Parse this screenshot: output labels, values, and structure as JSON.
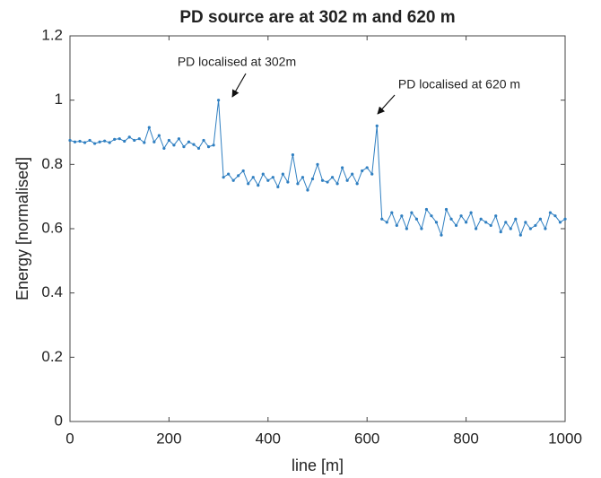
{
  "chart_data": {
    "type": "line",
    "title": "PD source are at 302 m and 620 m",
    "x_label": "line [m]",
    "y_label": "Energy [normalised]",
    "annotations": [
      "PD localised at 302m",
      "PD localised at 620 m"
    ],
    "x": [
      0,
      10,
      20,
      30,
      40,
      50,
      60,
      70,
      80,
      90,
      100,
      110,
      120,
      130,
      140,
      150,
      160,
      170,
      180,
      190,
      200,
      210,
      220,
      230,
      240,
      250,
      260,
      270,
      280,
      290,
      300,
      310,
      320,
      330,
      340,
      350,
      360,
      370,
      380,
      390,
      400,
      410,
      420,
      430,
      440,
      450,
      460,
      470,
      480,
      490,
      500,
      510,
      520,
      530,
      540,
      550,
      560,
      570,
      580,
      590,
      600,
      610,
      620,
      630,
      640,
      650,
      660,
      670,
      680,
      690,
      700,
      710,
      720,
      730,
      740,
      750,
      760,
      770,
      780,
      790,
      800,
      810,
      820,
      830,
      840,
      850,
      860,
      870,
      880,
      890,
      900,
      910,
      920,
      930,
      940,
      950,
      960,
      970,
      980,
      990,
      1000
    ],
    "series": [
      {
        "color": "#2f7fc1",
        "values": [
          0.875,
          0.87,
          0.872,
          0.868,
          0.875,
          0.865,
          0.87,
          0.873,
          0.868,
          0.878,
          0.88,
          0.872,
          0.885,
          0.875,
          0.88,
          0.868,
          0.915,
          0.87,
          0.89,
          0.85,
          0.875,
          0.86,
          0.88,
          0.855,
          0.87,
          0.862,
          0.85,
          0.875,
          0.855,
          0.86,
          1.0,
          0.76,
          0.77,
          0.75,
          0.765,
          0.78,
          0.74,
          0.76,
          0.735,
          0.77,
          0.75,
          0.76,
          0.73,
          0.77,
          0.745,
          0.83,
          0.74,
          0.76,
          0.72,
          0.755,
          0.8,
          0.75,
          0.745,
          0.76,
          0.74,
          0.79,
          0.75,
          0.77,
          0.74,
          0.78,
          0.79,
          0.77,
          0.92,
          0.63,
          0.62,
          0.65,
          0.61,
          0.64,
          0.6,
          0.65,
          0.63,
          0.6,
          0.66,
          0.64,
          0.62,
          0.58,
          0.66,
          0.63,
          0.61,
          0.64,
          0.62,
          0.65,
          0.6,
          0.63,
          0.62,
          0.61,
          0.64,
          0.59,
          0.62,
          0.6,
          0.63,
          0.58,
          0.62,
          0.6,
          0.61,
          0.63,
          0.6,
          0.65,
          0.64,
          0.62,
          0.63
        ]
      }
    ],
    "xlim": [
      0,
      1000
    ],
    "xticks": [
      0,
      200,
      400,
      600,
      800,
      1000
    ],
    "ylim": [
      0,
      1.2
    ],
    "yticks": [
      0,
      0.2,
      0.4,
      0.6,
      0.8,
      1,
      1.2
    ],
    "grid": false
  }
}
